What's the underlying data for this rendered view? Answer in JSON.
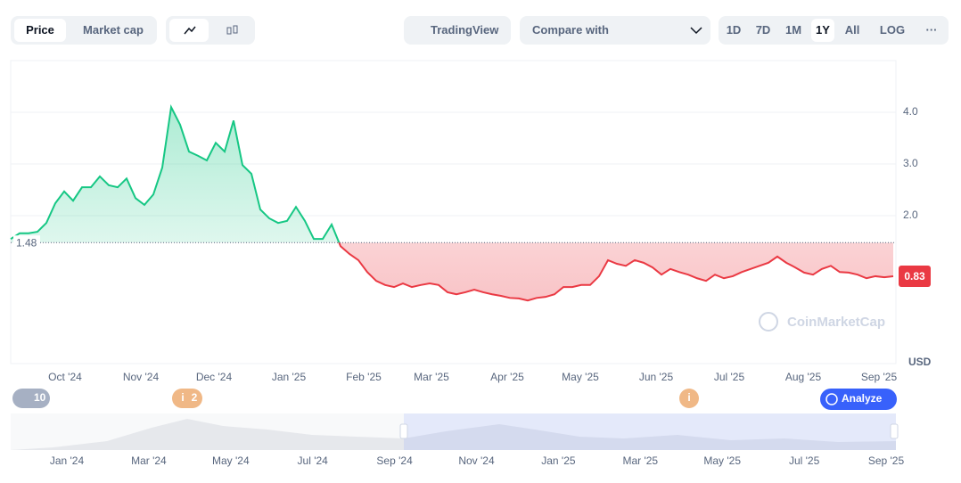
{
  "toolbar": {
    "tabs": [
      "Price",
      "Market cap"
    ],
    "tradingview": "TradingView",
    "compare": "Compare with",
    "ranges": [
      "1D",
      "7D",
      "1M",
      "1Y",
      "All",
      "LOG"
    ],
    "more": "···"
  },
  "chart_data": {
    "type": "line",
    "baseline": 1.48,
    "unit": "USD",
    "watermark": "CoinMarketCap",
    "up_color": "#16c784",
    "down_color": "#ea3943",
    "values": [
      1.55,
      1.66,
      1.66,
      1.69,
      1.86,
      2.24,
      2.47,
      2.29,
      2.55,
      2.55,
      2.76,
      2.59,
      2.55,
      2.72,
      2.34,
      2.21,
      2.41,
      2.93,
      4.1,
      3.76,
      3.24,
      3.16,
      3.07,
      3.41,
      3.24,
      3.84,
      2.98,
      2.81,
      2.12,
      1.95,
      1.86,
      1.9,
      2.17,
      1.9,
      1.55,
      1.55,
      1.83,
      1.41,
      1.26,
      1.14,
      0.91,
      0.74,
      0.66,
      0.62,
      0.69,
      0.62,
      0.66,
      0.69,
      0.66,
      0.52,
      0.48,
      0.52,
      0.57,
      0.52,
      0.48,
      0.45,
      0.41,
      0.4,
      0.36,
      0.41,
      0.43,
      0.48,
      0.62,
      0.62,
      0.66,
      0.66,
      0.83,
      1.14,
      1.07,
      1.03,
      1.14,
      1.09,
      1.0,
      0.86,
      0.97,
      0.91,
      0.86,
      0.79,
      0.74,
      0.86,
      0.79,
      0.83,
      0.91,
      0.97,
      1.03,
      1.09,
      1.21,
      1.09,
      1.0,
      0.9,
      0.86,
      0.97,
      1.03,
      0.91,
      0.9,
      0.86,
      0.79,
      0.83,
      0.81,
      0.83
    ],
    "xlim": [
      0,
      99.3
    ],
    "ylim": [
      -0.86,
      5.0
    ],
    "xticks": [
      {
        "value": 6.1,
        "label": "Oct '24"
      },
      {
        "value": 14.6,
        "label": "Nov '24"
      },
      {
        "value": 22.8,
        "label": "Dec '24"
      },
      {
        "value": 31.2,
        "label": "Jan '25"
      },
      {
        "value": 39.6,
        "label": "Feb '25"
      },
      {
        "value": 47.2,
        "label": "Mar '25"
      },
      {
        "value": 55.7,
        "label": "Apr '25"
      },
      {
        "value": 63.9,
        "label": "May '25"
      },
      {
        "value": 72.4,
        "label": "Jun '25"
      },
      {
        "value": 80.6,
        "label": "Jul '25"
      },
      {
        "value": 88.9,
        "label": "Aug '25"
      },
      {
        "value": 97.4,
        "label": "Sep '25"
      }
    ],
    "yticks": [
      {
        "value": 4,
        "label": "4.0"
      },
      {
        "value": 3,
        "label": "3.0"
      },
      {
        "value": 2,
        "label": "2.0"
      }
    ]
  },
  "events": {
    "history": "10",
    "marker_icon": "i",
    "marker_count": "2",
    "analyze": "Analyze"
  },
  "navigator": {
    "labels": [
      "Jan '24",
      "Mar '24",
      "May '24",
      "Jul '24",
      "Sep '24",
      "Nov '24",
      "Jan '25",
      "Mar '25",
      "May '25",
      "Jul '25",
      "Sep '25"
    ]
  }
}
